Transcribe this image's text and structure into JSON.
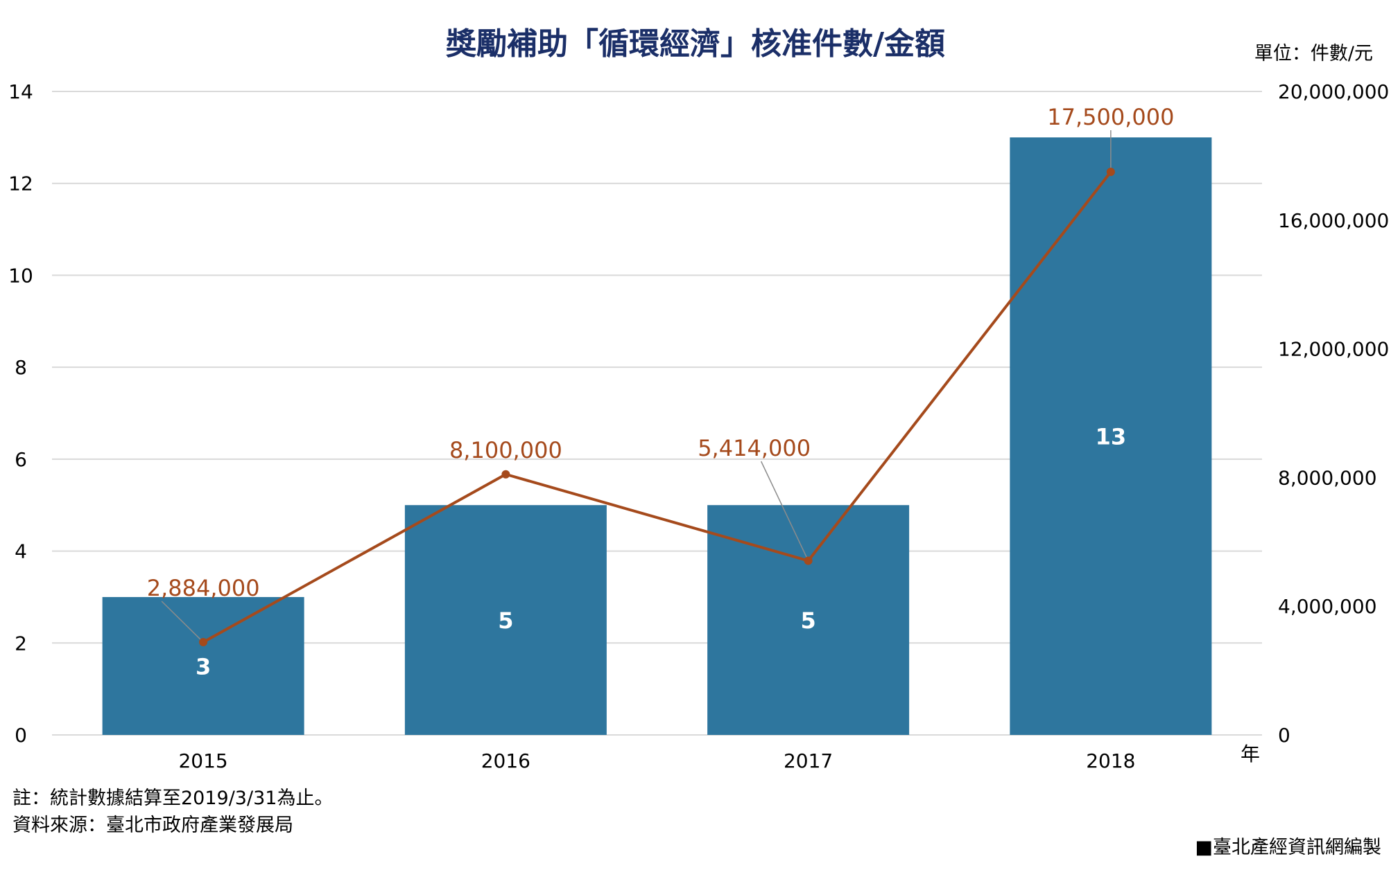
{
  "chart_data": {
    "type": "bar",
    "title": "獎勵補助「循環經濟」核准件數/金額",
    "unit_label": "單位：件數/元",
    "xlabel": "年",
    "categories": [
      "2015",
      "2016",
      "2017",
      "2018"
    ],
    "series": [
      {
        "type": "bar",
        "axis": "left",
        "values": [
          3,
          5,
          5,
          13
        ],
        "labels": [
          "3",
          "5",
          "5",
          "13"
        ]
      },
      {
        "type": "line",
        "axis": "right",
        "values": [
          2884000,
          8100000,
          5414000,
          17500000
        ],
        "labels": [
          "2,884,000",
          "8,100,000",
          "5,414,000",
          "17,500,000"
        ]
      }
    ],
    "y_left": {
      "lim": [
        0,
        14
      ],
      "ticks": [
        "0",
        "2",
        "4",
        "6",
        "8",
        "10",
        "12",
        "14"
      ]
    },
    "y_right": {
      "lim": [
        0,
        20000000
      ],
      "ticks": [
        "0",
        "4,000,000",
        "8,000,000",
        "12,000,000",
        "16,000,000",
        "20,000,000"
      ]
    },
    "grid": true,
    "colors": {
      "bar": "#2e769e",
      "line": "#a54a1c",
      "title": "#1b2f68"
    }
  },
  "notes": {
    "note": "註：統計數據結算至2019/3/31為止。",
    "source": "資料來源：臺北市政府產業發展局",
    "credit": "■臺北產經資訊網編製"
  }
}
